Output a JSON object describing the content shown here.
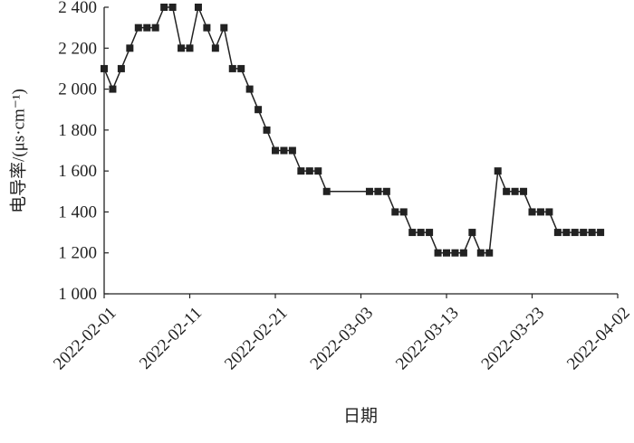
{
  "chart_data": {
    "type": "line",
    "x": [
      "2022-02-01",
      "2022-02-02",
      "2022-02-03",
      "2022-02-04",
      "2022-02-05",
      "2022-02-06",
      "2022-02-07",
      "2022-02-08",
      "2022-02-09",
      "2022-02-10",
      "2022-02-11",
      "2022-02-12",
      "2022-02-13",
      "2022-02-14",
      "2022-02-15",
      "2022-02-16",
      "2022-02-17",
      "2022-02-18",
      "2022-02-19",
      "2022-02-20",
      "2022-02-21",
      "2022-02-22",
      "2022-02-23",
      "2022-02-24",
      "2022-02-25",
      "2022-02-26",
      "2022-02-27",
      "2022-03-04",
      "2022-03-05",
      "2022-03-06",
      "2022-03-07",
      "2022-03-08",
      "2022-03-09",
      "2022-03-10",
      "2022-03-11",
      "2022-03-12",
      "2022-03-13",
      "2022-03-14",
      "2022-03-15",
      "2022-03-16",
      "2022-03-17",
      "2022-03-18",
      "2022-03-19",
      "2022-03-20",
      "2022-03-21",
      "2022-03-22",
      "2022-03-23",
      "2022-03-24",
      "2022-03-25",
      "2022-03-26",
      "2022-03-27",
      "2022-03-28",
      "2022-03-29",
      "2022-03-30",
      "2022-03-31"
    ],
    "values": [
      2100,
      2000,
      2100,
      2200,
      2300,
      2300,
      2300,
      2400,
      2400,
      2200,
      2200,
      2400,
      2300,
      2200,
      2300,
      2100,
      2100,
      2000,
      1900,
      1800,
      1700,
      1700,
      1700,
      1600,
      1600,
      1600,
      1500,
      1500,
      1500,
      1500,
      1400,
      1400,
      1300,
      1300,
      1300,
      1200,
      1200,
      1200,
      1200,
      1300,
      1200,
      1200,
      1600,
      1500,
      1500,
      1500,
      1400,
      1400,
      1400,
      1300,
      1300,
      1300,
      1300,
      1300,
      1300
    ],
    "color": "#222222",
    "xlim": [
      "2022-02-01",
      "2022-04-02"
    ],
    "xticks": [
      "2022-02-01",
      "2022-02-11",
      "2022-02-21",
      "2022-03-03",
      "2022-03-13",
      "2022-03-23",
      "2022-04-02"
    ],
    "ylim": [
      1000,
      2400
    ],
    "yticks": [
      {
        "value": 1000,
        "label": "1 000"
      },
      {
        "value": 1200,
        "label": "1 200"
      },
      {
        "value": 1400,
        "label": "1 400"
      },
      {
        "value": 1600,
        "label": "1 600"
      },
      {
        "value": 1800,
        "label": "1 800"
      },
      {
        "value": 2000,
        "label": "2 000"
      },
      {
        "value": 2200,
        "label": "2 200"
      },
      {
        "value": 2400,
        "label": "2 400"
      }
    ],
    "xlabel": "日期",
    "ylabel": "电导率/(μs·cm⁻¹)"
  }
}
